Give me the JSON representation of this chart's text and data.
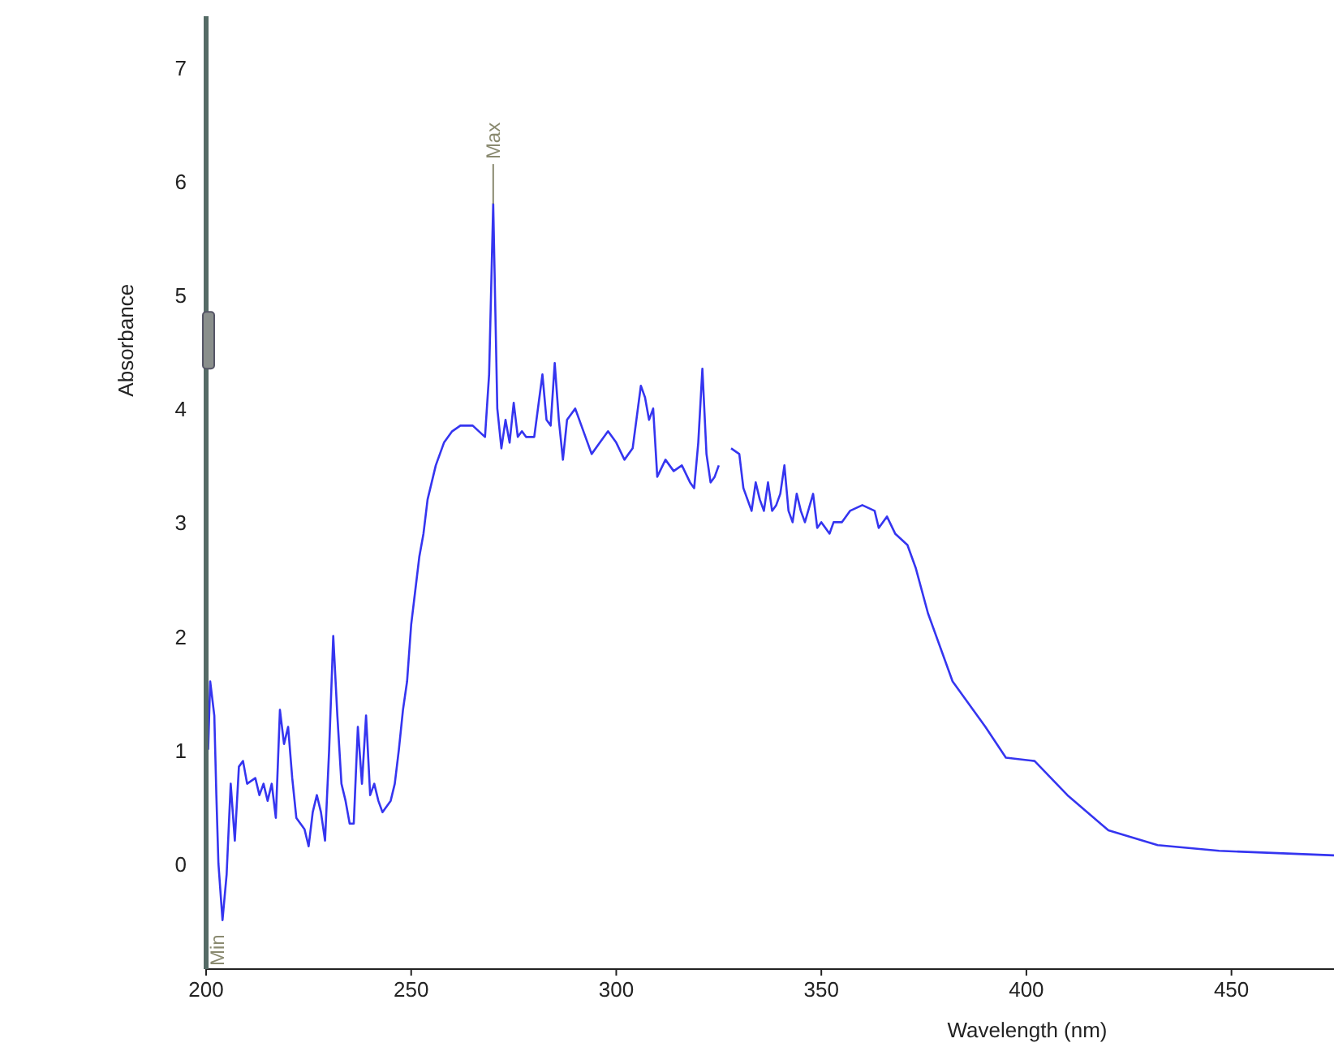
{
  "chart_data": {
    "type": "line",
    "xlabel": "Wavelength (nm)",
    "ylabel": "Absorbance",
    "x": [
      200.5,
      201,
      202,
      202.5,
      203,
      204,
      205,
      206,
      207,
      208,
      209,
      210,
      212,
      213,
      214,
      215,
      216,
      217,
      218,
      219,
      220,
      221,
      222,
      223,
      224,
      225,
      226,
      227,
      228,
      229,
      230,
      231,
      232,
      233,
      234,
      235,
      236,
      237,
      238,
      239,
      240,
      241,
      242,
      243,
      245,
      246,
      247,
      248,
      249,
      250,
      251,
      252,
      253,
      254,
      256,
      258,
      260,
      262,
      265,
      268,
      269,
      270,
      271,
      272,
      273,
      274,
      275,
      276,
      277,
      278,
      280,
      282,
      283,
      284,
      285,
      286,
      287,
      288,
      290,
      292,
      294,
      296,
      298,
      300,
      302,
      304,
      306,
      307,
      308,
      309,
      310,
      312,
      314,
      316,
      318,
      319,
      320,
      321,
      322,
      323,
      324,
      325,
      326,
      328,
      330,
      331,
      333,
      334,
      335,
      336,
      337,
      338,
      339,
      340,
      341,
      342,
      343,
      344,
      345,
      346,
      348,
      349,
      350,
      352,
      353,
      355,
      357,
      360,
      363,
      364,
      366,
      368,
      371,
      373,
      376,
      382,
      390,
      395,
      402,
      410,
      420,
      432,
      447,
      475
    ],
    "series": [
      {
        "color": "#3535f0",
        "values": [
          1.0,
          1.6,
          1.3,
          0.6,
          0.0,
          -0.5,
          -0.1,
          0.7,
          0.2,
          0.85,
          0.9,
          0.7,
          0.75,
          0.6,
          0.7,
          0.55,
          0.7,
          0.4,
          1.35,
          1.05,
          1.2,
          0.75,
          0.4,
          0.35,
          0.3,
          0.15,
          0.45,
          0.6,
          0.45,
          0.2,
          1.0,
          2.0,
          1.3,
          0.7,
          0.55,
          0.35,
          0.35,
          1.2,
          0.7,
          1.3,
          0.6,
          0.7,
          0.55,
          0.45,
          0.55,
          0.7,
          1.0,
          1.35,
          1.6,
          2.1,
          2.4,
          2.7,
          2.9,
          3.2,
          3.5,
          3.7,
          3.8,
          3.85,
          3.85,
          3.75,
          4.3,
          5.8,
          4.0,
          3.65,
          3.9,
          3.7,
          4.05,
          3.75,
          3.8,
          3.75,
          3.75,
          4.3,
          3.9,
          3.85,
          4.4,
          3.9,
          3.55,
          3.9,
          4.0,
          3.8,
          3.6,
          3.7,
          3.8,
          3.7,
          3.55,
          3.65,
          4.2,
          4.1,
          3.9,
          4.0,
          3.4,
          3.55,
          3.45,
          3.5,
          3.35,
          3.3,
          3.7,
          4.35,
          3.6,
          3.35,
          3.4,
          3.5,
          null,
          3.65,
          3.6,
          3.3,
          3.1,
          3.35,
          3.2,
          3.1,
          3.35,
          3.1,
          3.15,
          3.25,
          3.5,
          3.1,
          3.0,
          3.25,
          3.1,
          3.0,
          3.25,
          2.95,
          3.0,
          2.9,
          3.0,
          3.0,
          3.1,
          3.15,
          3.1,
          2.95,
          3.05,
          2.9,
          2.8,
          2.6,
          2.2,
          1.6,
          1.2,
          0.93,
          0.9,
          0.6,
          0.29,
          0.16,
          0.11,
          0.07
        ]
      }
    ],
    "xlim": [
      200,
      475
    ],
    "ylim": [
      -0.93,
      7.45
    ],
    "xticks": [
      200,
      250,
      300,
      350,
      400,
      450
    ],
    "yticks": [
      0,
      1,
      2,
      3,
      4,
      5,
      6,
      7
    ],
    "grid": false,
    "marker": "none",
    "line_style": "solid",
    "annotations": [
      {
        "text": "Max",
        "x": 270,
        "y": 5.8
      },
      {
        "text": "Min",
        "x": 204,
        "y": -0.5
      }
    ]
  }
}
